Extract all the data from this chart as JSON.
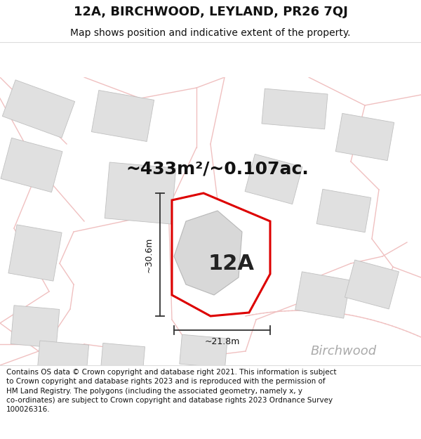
{
  "title": "12A, BIRCHWOOD, LEYLAND, PR26 7QJ",
  "subtitle": "Map shows position and indicative extent of the property.",
  "footer": "Contains OS data © Crown copyright and database right 2021. This information is subject to Crown copyright and database rights 2023 and is reproduced with the permission of HM Land Registry. The polygons (including the associated geometry, namely x, y co-ordinates) are subject to Crown copyright and database rights 2023 Ordnance Survey 100026316.",
  "area_text": "~433m²/~0.107ac.",
  "label_12a": "12A",
  "dim_height": "~30.6m",
  "dim_width": "~21.8m",
  "birchwood_label": "Birchwood",
  "map_bg": "#ffffff",
  "road_color": "#f0c0c0",
  "plot_fill": "#ffffff",
  "plot_edge": "#dd0000",
  "building_fill": "#e0e0e0",
  "building_edge": "#c0c0c0",
  "dim_color": "#333333",
  "title_fontsize": 13,
  "subtitle_fontsize": 10,
  "area_fontsize": 18,
  "label_fontsize": 22,
  "dim_fontsize": 9,
  "birchwood_fontsize": 13
}
